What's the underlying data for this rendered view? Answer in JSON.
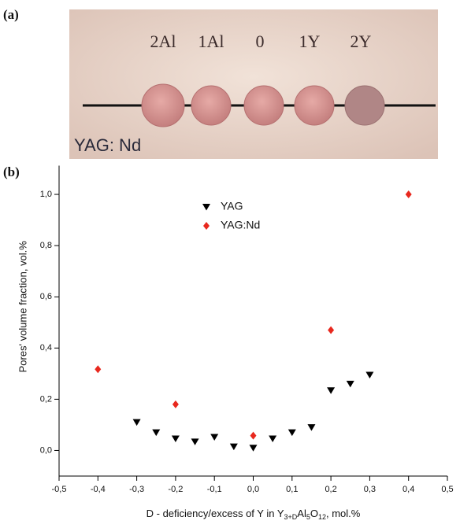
{
  "panel_a": "(a)",
  "panel_b": "(b)",
  "photo": {
    "labels": [
      "2Al",
      "1Al",
      "0",
      "1Y",
      "2Y"
    ],
    "caption": "YAG: Nd"
  },
  "chart_data": {
    "type": "scatter",
    "x_label": [
      "D - deficiency/excess of Y in Y",
      "3+D",
      "Al",
      "5",
      "O",
      "12",
      ", mol.%"
    ],
    "y_label": "Pores' volume fraction, vol.%",
    "xlim": [
      -0.5,
      0.5
    ],
    "ylim": [
      -0.1,
      1.1
    ],
    "xticks": [
      {
        "value": -0.5,
        "label": "-0,5"
      },
      {
        "value": -0.4,
        "label": "-0,4"
      },
      {
        "value": -0.3,
        "label": "-0,3"
      },
      {
        "value": -0.2,
        "label": "-0,2"
      },
      {
        "value": -0.1,
        "label": "-0,1"
      },
      {
        "value": 0,
        "label": "0,0"
      },
      {
        "value": 0.1,
        "label": "0,1"
      },
      {
        "value": 0.2,
        "label": "0,2"
      },
      {
        "value": 0.3,
        "label": "0,3"
      },
      {
        "value": 0.4,
        "label": "0,4"
      },
      {
        "value": 0.5,
        "label": "0,5"
      }
    ],
    "yticks": [
      {
        "value": 0,
        "label": "0,0"
      },
      {
        "value": 0.2,
        "label": "0,2"
      },
      {
        "value": 0.4,
        "label": "0,4"
      },
      {
        "value": 0.6,
        "label": "0,6"
      },
      {
        "value": 0.8,
        "label": "0,8"
      },
      {
        "value": 1.0,
        "label": "1,0"
      }
    ],
    "series": [
      {
        "name": "YAG",
        "color": "#000000",
        "marker": "triangle-down",
        "x": [
          -0.3,
          -0.25,
          -0.2,
          -0.15,
          -0.1,
          -0.05,
          0,
          0.05,
          0.1,
          0.15,
          0.2,
          0.25,
          0.3
        ],
        "values": [
          0.11,
          0.07,
          0.046,
          0.034,
          0.052,
          0.015,
          0.01,
          0.046,
          0.07,
          0.09,
          0.234,
          0.26,
          0.295
        ]
      },
      {
        "name": "YAG:Nd",
        "color": "#e8281e",
        "marker": "diamond",
        "x": [
          -0.4,
          -0.2,
          0,
          0.2,
          0.4
        ],
        "values": [
          0.317,
          0.18,
          0.058,
          0.47,
          1.0
        ]
      }
    ]
  }
}
